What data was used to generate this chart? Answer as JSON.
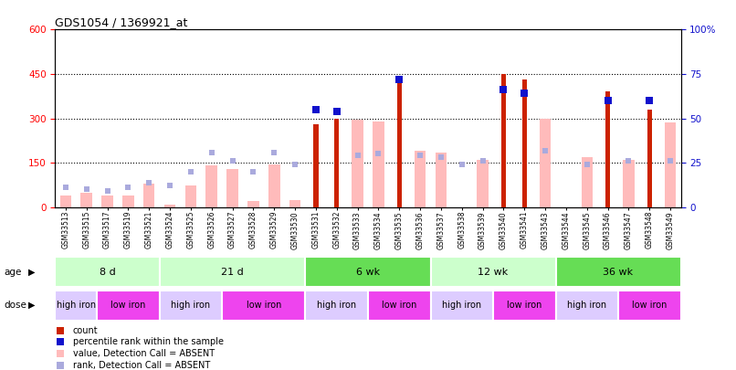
{
  "title": "GDS1054 / 1369921_at",
  "samples": [
    "GSM33513",
    "GSM33515",
    "GSM33517",
    "GSM33519",
    "GSM33521",
    "GSM33524",
    "GSM33525",
    "GSM33526",
    "GSM33527",
    "GSM33528",
    "GSM33529",
    "GSM33530",
    "GSM33531",
    "GSM33532",
    "GSM33533",
    "GSM33534",
    "GSM33535",
    "GSM33536",
    "GSM33537",
    "GSM33538",
    "GSM33539",
    "GSM33540",
    "GSM33541",
    "GSM33543",
    "GSM33544",
    "GSM33545",
    "GSM33546",
    "GSM33547",
    "GSM33548",
    "GSM33549"
  ],
  "count": [
    null,
    null,
    null,
    null,
    null,
    null,
    null,
    null,
    null,
    null,
    null,
    null,
    280,
    300,
    null,
    null,
    440,
    null,
    null,
    null,
    null,
    450,
    430,
    null,
    null,
    null,
    390,
    null,
    330,
    null
  ],
  "value_absent": [
    40,
    50,
    40,
    40,
    80,
    10,
    75,
    140,
    130,
    20,
    145,
    25,
    null,
    null,
    295,
    290,
    null,
    190,
    185,
    null,
    160,
    null,
    null,
    300,
    null,
    170,
    null,
    160,
    null,
    285
  ],
  "rank_present_pct": [
    null,
    null,
    null,
    null,
    null,
    null,
    null,
    null,
    null,
    null,
    null,
    null,
    55,
    54,
    null,
    null,
    72,
    null,
    null,
    null,
    null,
    66,
    64,
    null,
    null,
    null,
    60,
    null,
    60,
    null
  ],
  "rank_absent_pct": [
    11,
    10,
    9,
    11,
    14,
    12,
    20,
    31,
    26,
    20,
    31,
    24,
    null,
    null,
    29,
    30,
    null,
    29,
    28,
    24,
    26,
    null,
    null,
    32,
    null,
    24,
    null,
    26,
    null,
    26
  ],
  "age_groups": [
    {
      "label": "8 d",
      "start": 0,
      "end": 5,
      "color": "#ccffcc"
    },
    {
      "label": "21 d",
      "start": 5,
      "end": 12,
      "color": "#ccffcc"
    },
    {
      "label": "6 wk",
      "start": 12,
      "end": 18,
      "color": "#66dd55"
    },
    {
      "label": "12 wk",
      "start": 18,
      "end": 24,
      "color": "#ccffcc"
    },
    {
      "label": "36 wk",
      "start": 24,
      "end": 30,
      "color": "#66dd55"
    }
  ],
  "dose_groups": [
    {
      "label": "high iron",
      "start": 0,
      "end": 2,
      "color": "#ddccff"
    },
    {
      "label": "low iron",
      "start": 2,
      "end": 5,
      "color": "#ee44ee"
    },
    {
      "label": "high iron",
      "start": 5,
      "end": 8,
      "color": "#ddccff"
    },
    {
      "label": "low iron",
      "start": 8,
      "end": 12,
      "color": "#ee44ee"
    },
    {
      "label": "high iron",
      "start": 12,
      "end": 15,
      "color": "#ddccff"
    },
    {
      "label": "low iron",
      "start": 15,
      "end": 18,
      "color": "#ee44ee"
    },
    {
      "label": "high iron",
      "start": 18,
      "end": 21,
      "color": "#ddccff"
    },
    {
      "label": "low iron",
      "start": 21,
      "end": 24,
      "color": "#ee44ee"
    },
    {
      "label": "high iron",
      "start": 24,
      "end": 27,
      "color": "#ddccff"
    },
    {
      "label": "low iron",
      "start": 27,
      "end": 30,
      "color": "#ee44ee"
    }
  ],
  "ylim_left": [
    0,
    600
  ],
  "ylim_right": [
    0,
    100
  ],
  "yticks_left": [
    0,
    150,
    300,
    450,
    600
  ],
  "yticks_right": [
    0,
    25,
    50,
    75,
    100
  ],
  "bar_color": "#cc2200",
  "value_absent_color": "#ffbbbb",
  "rank_present_color": "#1111cc",
  "rank_absent_color": "#aaaadd",
  "background_color": "#ffffff"
}
